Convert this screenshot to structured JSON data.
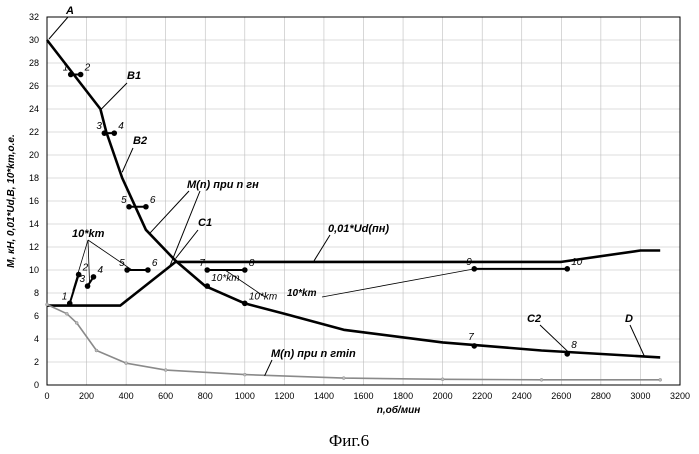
{
  "chart_data": {
    "type": "line",
    "caption": "Фиг.6",
    "xlabel": "n,об/мин",
    "ylabel": "M, кН, 0,01*Ud,B, 10*km,о.е.",
    "xlim": [
      0,
      3200
    ],
    "ylim": [
      0,
      32
    ],
    "xticks": [
      "0",
      "200",
      "400",
      "600",
      "800",
      "1000",
      "1200",
      "1400",
      "1600",
      "1800",
      "2000",
      "2200",
      "2400",
      "2600",
      "2800",
      "3000",
      "3200"
    ],
    "yticks": [
      "0",
      "2",
      "4",
      "6",
      "8",
      "10",
      "12",
      "14",
      "16",
      "18",
      "20",
      "22",
      "24",
      "26",
      "28",
      "30",
      "32"
    ],
    "grid": true,
    "series": [
      {
        "name": "M(n) при n гн",
        "style": "bold",
        "points": [
          [
            0,
            30
          ],
          [
            270,
            24
          ],
          [
            300,
            22
          ],
          [
            380,
            18
          ],
          [
            500,
            13.5
          ],
          [
            650,
            10.8
          ],
          [
            800,
            8.6
          ],
          [
            1000,
            7.1
          ],
          [
            1200,
            6.2
          ],
          [
            1500,
            4.8
          ],
          [
            2000,
            3.7
          ],
          [
            2500,
            3.0
          ],
          [
            3100,
            2.4
          ]
        ]
      },
      {
        "name": "0,01*Ud(пн)",
        "style": "bold",
        "points": [
          [
            0,
            6.9
          ],
          [
            370,
            6.9
          ],
          [
            650,
            10.7
          ],
          [
            1000,
            10.7
          ],
          [
            2600,
            10.7
          ],
          [
            3000,
            11.7
          ],
          [
            3100,
            11.7
          ]
        ]
      },
      {
        "name": "M(n) при n гmin",
        "style": "light",
        "points": [
          [
            0,
            7.0
          ],
          [
            100,
            6.2
          ],
          [
            150,
            5.4
          ],
          [
            250,
            3.0
          ],
          [
            400,
            1.9
          ],
          [
            600,
            1.3
          ],
          [
            1000,
            0.9
          ],
          [
            1500,
            0.6
          ],
          [
            2000,
            0.5
          ],
          [
            2500,
            0.45
          ],
          [
            3100,
            0.45
          ]
        ]
      }
    ],
    "km_segments": [
      {
        "label_from": "1",
        "label_to": "2",
        "from": [
          115,
          7.1
        ],
        "to": [
          160,
          9.6
        ]
      },
      {
        "label_from": "3",
        "label_to": "4",
        "from": [
          205,
          8.6
        ],
        "to": [
          235,
          9.4
        ]
      },
      {
        "label_from": "5",
        "label_to": "6",
        "from": [
          405,
          10.0
        ],
        "to": [
          510,
          10.0
        ]
      },
      {
        "label_from": "7",
        "label_to": "8",
        "from": [
          810,
          10.0
        ],
        "to": [
          1000,
          10.0
        ]
      },
      {
        "label_from": "9",
        "label_to": "10",
        "from": [
          2160,
          10.1
        ],
        "to": [
          2630,
          10.1
        ]
      }
    ],
    "tangent_segments": [
      {
        "label_from": "1",
        "label_to": "2",
        "from": [
          120,
          27.0
        ],
        "to": [
          170,
          27.0
        ]
      },
      {
        "label_from": "3",
        "label_to": "4",
        "from": [
          290,
          21.9
        ],
        "to": [
          340,
          21.9
        ]
      },
      {
        "label_from": "5",
        "label_to": "6",
        "from": [
          415,
          15.5
        ],
        "to": [
          500,
          15.5
        ]
      }
    ],
    "annotations": [
      "A",
      "B1",
      "B2",
      "C1",
      "C2",
      "D",
      "10*km",
      "10*km",
      "7",
      "8",
      "9",
      "10",
      "M(n) при n гн",
      "0,01*Ud(пн)",
      "M(n) при n гmin"
    ]
  }
}
